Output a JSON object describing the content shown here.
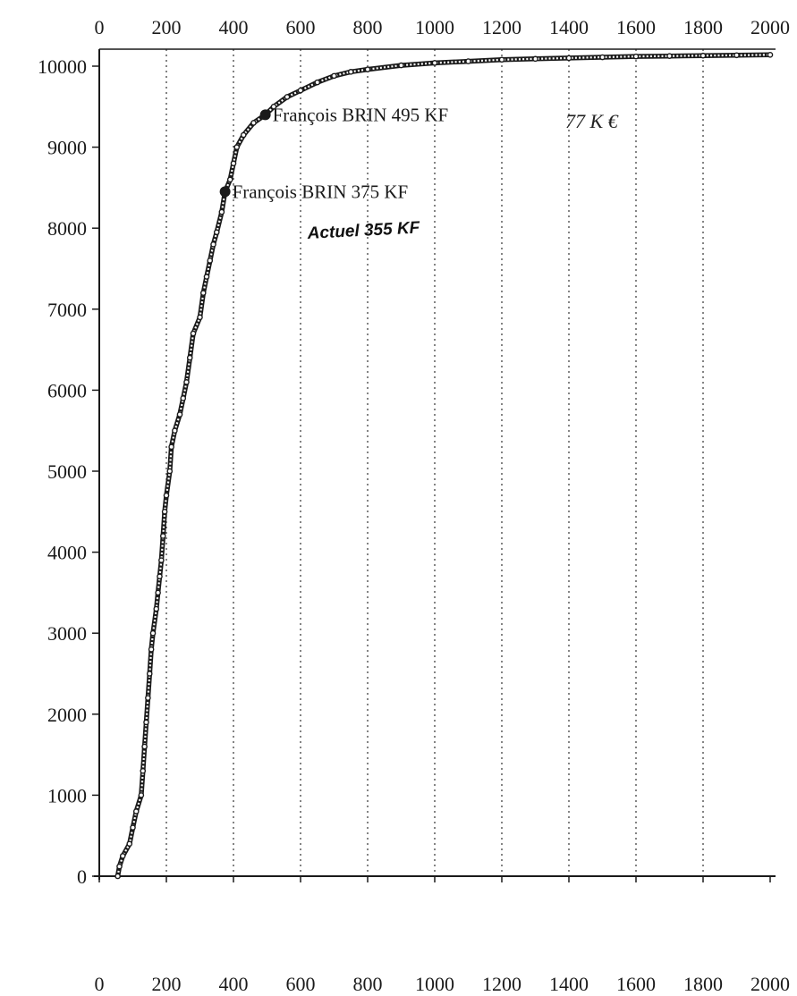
{
  "chart_data": {
    "type": "scatter",
    "title": "",
    "xlabel": "",
    "ylabel": "",
    "xlim": [
      0,
      2000
    ],
    "ylim": [
      0,
      10000
    ],
    "x_ticks": [
      "0",
      "200",
      "400",
      "600",
      "800",
      "1000",
      "1200",
      "1400",
      "1600",
      "1800",
      "2000"
    ],
    "y_ticks": [
      "0",
      "1000",
      "2000",
      "3000",
      "4000",
      "5000",
      "6000",
      "7000",
      "8000",
      "9000",
      "10000"
    ],
    "grid": "vertical dotted",
    "series": [
      {
        "points": [
          [
            55,
            0
          ],
          [
            60,
            120
          ],
          [
            70,
            250
          ],
          [
            90,
            400
          ],
          [
            100,
            600
          ],
          [
            110,
            800
          ],
          [
            125,
            1000
          ],
          [
            130,
            1300
          ],
          [
            135,
            1600
          ],
          [
            140,
            1900
          ],
          [
            145,
            2200
          ],
          [
            150,
            2500
          ],
          [
            155,
            2800
          ],
          [
            160,
            3000
          ],
          [
            170,
            3300
          ],
          [
            175,
            3500
          ],
          [
            180,
            3700
          ],
          [
            185,
            3900
          ],
          [
            190,
            4200
          ],
          [
            195,
            4500
          ],
          [
            200,
            4700
          ],
          [
            210,
            5000
          ],
          [
            215,
            5300
          ],
          [
            225,
            5500
          ],
          [
            240,
            5700
          ],
          [
            250,
            5900
          ],
          [
            260,
            6100
          ],
          [
            270,
            6400
          ],
          [
            280,
            6700
          ],
          [
            300,
            6900
          ],
          [
            310,
            7200
          ],
          [
            320,
            7400
          ],
          [
            330,
            7600
          ],
          [
            340,
            7800
          ],
          [
            350,
            7950
          ],
          [
            365,
            8200
          ],
          [
            375,
            8450
          ],
          [
            390,
            8600
          ],
          [
            400,
            8800
          ],
          [
            410,
            9000
          ],
          [
            430,
            9150
          ],
          [
            460,
            9300
          ],
          [
            495,
            9400
          ],
          [
            520,
            9500
          ],
          [
            560,
            9620
          ],
          [
            600,
            9700
          ],
          [
            650,
            9800
          ],
          [
            700,
            9880
          ],
          [
            750,
            9930
          ],
          [
            800,
            9960
          ],
          [
            900,
            10010
          ],
          [
            1000,
            10040
          ],
          [
            1100,
            10060
          ],
          [
            1200,
            10080
          ],
          [
            1300,
            10090
          ],
          [
            1400,
            10100
          ],
          [
            1500,
            10110
          ],
          [
            1600,
            10120
          ],
          [
            1700,
            10125
          ],
          [
            1800,
            10130
          ],
          [
            1900,
            10135
          ],
          [
            2000,
            10140
          ]
        ]
      }
    ],
    "highlights": [
      {
        "x": 375,
        "y": 8450,
        "label": "François BRIN 375 KF"
      },
      {
        "x": 495,
        "y": 9400,
        "label": "François BRIN 495 KF"
      }
    ],
    "handwritten_notes": {
      "near_495": "77 K €",
      "near_375": "Actuel 355 KF"
    }
  },
  "colors": {
    "line": "#1a1a1a",
    "grid": "#333333",
    "background": "#ffffff"
  }
}
